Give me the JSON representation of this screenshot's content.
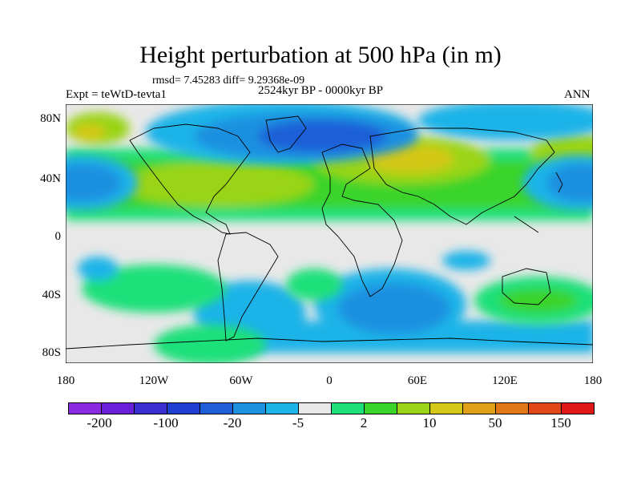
{
  "title": "Height perturbation at 500 hPa (in m)",
  "stats": "rmsd= 7.45283 diff= 9.29368e-09",
  "left_string": "Expt = teWtD-tevta1",
  "center_string": "2524kyr BP - 0000kyr BP",
  "right_string": "ANN",
  "lat_labels": [
    "80N",
    "40N",
    "0",
    "40S",
    "80S"
  ],
  "lon_labels": [
    "180",
    "120W",
    "60W",
    "0",
    "60E",
    "120E",
    "180"
  ],
  "colorbar": {
    "colors": [
      "#8a2be2",
      "#6a1fd8",
      "#3a2fd0",
      "#1e3fcf",
      "#1e5fd8",
      "#1e90e0",
      "#1eb4e8",
      "#e8e8e8",
      "#1ee07a",
      "#3ad42a",
      "#9ad418",
      "#d4c818",
      "#e0a018",
      "#e07818",
      "#e04818",
      "#e01818"
    ],
    "labels": [
      "-200",
      "-100",
      "-20",
      "-5",
      "2",
      "10",
      "50",
      "150"
    ]
  }
}
